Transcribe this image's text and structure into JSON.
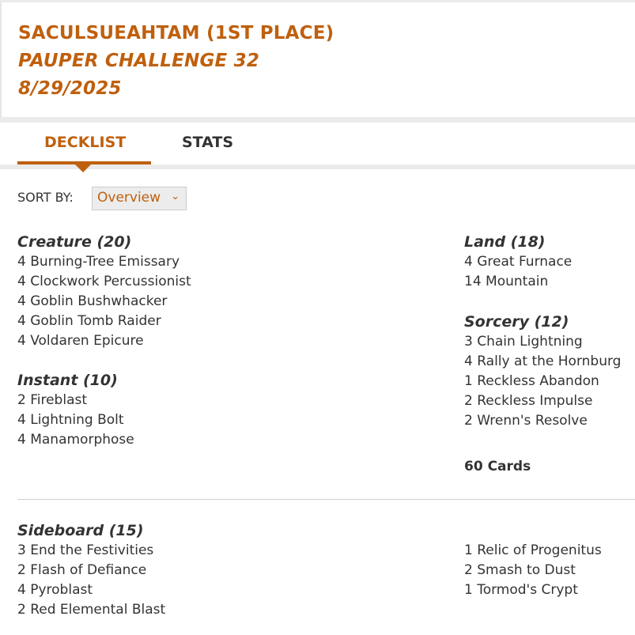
{
  "header": {
    "player": "SACULSUEAHTAM (1ST PLACE)",
    "event": "PAUPER CHALLENGE 32",
    "date": "8/29/2025"
  },
  "tabs": [
    {
      "label": "DECKLIST",
      "active": true
    },
    {
      "label": "STATS",
      "active": false
    }
  ],
  "sort": {
    "label": "SORT BY:",
    "value": "Overview",
    "icon": "chevron-down-icon"
  },
  "colors": {
    "accent": "#bf600e",
    "text": "#333333"
  },
  "main": {
    "creature": {
      "heading": "Creature (20)",
      "cards": [
        "4 Burning-Tree Emissary",
        "4 Clockwork Percussionist",
        "4 Goblin Bushwhacker",
        "4 Goblin Tomb Raider",
        "4 Voldaren Epicure"
      ]
    },
    "instant": {
      "heading": "Instant (10)",
      "cards": [
        "2 Fireblast",
        "4 Lightning Bolt",
        "4 Manamorphose"
      ]
    },
    "land": {
      "heading": "Land (18)",
      "cards": [
        "4 Great Furnace",
        "14 Mountain"
      ]
    },
    "sorcery": {
      "heading": "Sorcery (12)",
      "cards": [
        "3 Chain Lightning",
        "4 Rally at the Hornburg",
        "1 Reckless Abandon",
        "2 Reckless Impulse",
        "2 Wrenn's Resolve"
      ]
    },
    "total": "60 Cards"
  },
  "sideboard": {
    "heading": "Sideboard (15)",
    "left": [
      "3 End the Festivities",
      "2 Flash of Defiance",
      "4 Pyroblast",
      "2 Red Elemental Blast"
    ],
    "right": [
      "1 Relic of Progenitus",
      "2 Smash to Dust",
      "1 Tormod's Crypt"
    ]
  }
}
